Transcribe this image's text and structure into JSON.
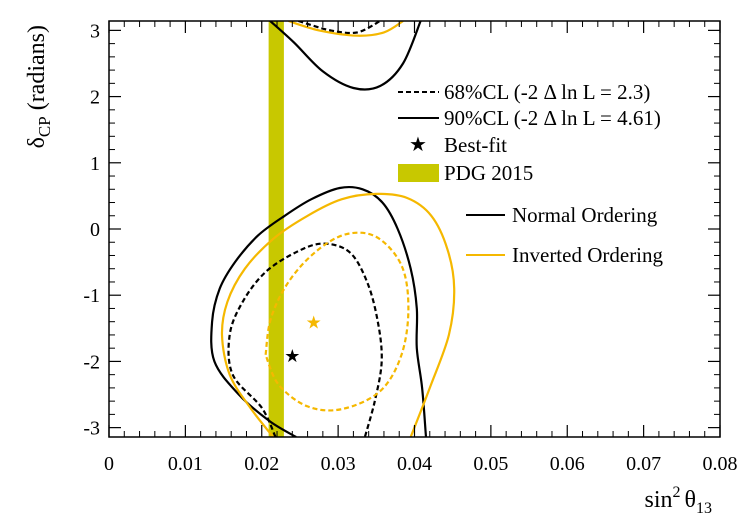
{
  "chart_data": {
    "type": "line",
    "xlabel": "sin",
    "xlabel_sup": "2",
    "xlabel_symbol": "θ",
    "xlabel_sub": "13",
    "ylabel_symbol": "δ",
    "ylabel_sub": "CP",
    "ylabel_unit": "(radians)",
    "xlim": [
      0,
      0.08
    ],
    "ylim": [
      -3.1416,
      3.1416
    ],
    "x_ticks": [
      0,
      0.01,
      0.02,
      0.03,
      0.04,
      0.05,
      0.06,
      0.07,
      0.08
    ],
    "x_tick_labels": [
      "0",
      "0.01",
      "0.02",
      "0.03",
      "0.04",
      "0.05",
      "0.06",
      "0.07",
      "0.08"
    ],
    "y_ticks": [
      -3,
      -2,
      -1,
      0,
      1,
      2,
      3
    ],
    "y_tick_labels": [
      "-3",
      "-2",
      "-1",
      "0",
      "1",
      "2",
      "3"
    ],
    "grid": false,
    "legend": {
      "placement": "top-right",
      "entries": [
        {
          "label": "68%CL (-2 Δ ln L = 2.3)",
          "style": "dashed-line"
        },
        {
          "label": "90%CL (-2 Δ ln L = 4.61)",
          "style": "solid-line"
        },
        {
          "label": "Best-fit",
          "style": "star"
        },
        {
          "label": "PDG 2015",
          "style": "band"
        },
        {
          "label": "Normal Ordering",
          "style": "color-line",
          "color": "#000000"
        },
        {
          "label": "Inverted Ordering",
          "style": "color-line",
          "color": "#f5b800"
        }
      ]
    },
    "band": {
      "name": "PDG 2015",
      "xmin": 0.0209,
      "xmax": 0.0229,
      "color": "#c8c800"
    },
    "series": [
      {
        "name": "Normal Ordering 90%CL",
        "color": "#000000",
        "dash": false,
        "points": [
          [
            0.0245,
            -3.1416
          ],
          [
            0.021,
            -2.9
          ],
          [
            0.017,
            -2.5
          ],
          [
            0.0138,
            -2.0
          ],
          [
            0.0135,
            -1.4
          ],
          [
            0.0145,
            -0.9
          ],
          [
            0.0165,
            -0.5
          ],
          [
            0.0195,
            -0.1
          ],
          [
            0.023,
            0.2
          ],
          [
            0.0265,
            0.45
          ],
          [
            0.0302,
            0.62
          ],
          [
            0.0332,
            0.6
          ],
          [
            0.0358,
            0.4
          ],
          [
            0.0378,
            0.0
          ],
          [
            0.0395,
            -0.6
          ],
          [
            0.0403,
            -1.2
          ],
          [
            0.0403,
            -1.8
          ],
          [
            0.041,
            -2.4
          ],
          [
            0.0415,
            -3.1416
          ]
        ]
      },
      {
        "name": "Normal Ordering 90%CL top",
        "color": "#000000",
        "dash": false,
        "points": [
          [
            0.0211,
            3.1416
          ],
          [
            0.0242,
            2.82
          ],
          [
            0.028,
            2.38
          ],
          [
            0.032,
            2.13
          ],
          [
            0.0355,
            2.16
          ],
          [
            0.0385,
            2.5
          ],
          [
            0.0408,
            3.1416
          ]
        ]
      },
      {
        "name": "Normal Ordering 68%CL",
        "color": "#000000",
        "dash": true,
        "points": [
          [
            0.0218,
            -3.1416
          ],
          [
            0.02,
            -2.7
          ],
          [
            0.0162,
            -2.2
          ],
          [
            0.0158,
            -1.6
          ],
          [
            0.0175,
            -1.1
          ],
          [
            0.0205,
            -0.65
          ],
          [
            0.0245,
            -0.35
          ],
          [
            0.028,
            -0.22
          ],
          [
            0.0315,
            -0.35
          ],
          [
            0.0338,
            -0.8
          ],
          [
            0.0352,
            -1.4
          ],
          [
            0.0357,
            -2.0
          ],
          [
            0.0348,
            -2.6
          ],
          [
            0.0335,
            -3.1416
          ]
        ]
      },
      {
        "name": "Normal Ordering 68%CL top",
        "color": "#000000",
        "dash": true,
        "points": [
          [
            0.0248,
            3.1416
          ],
          [
            0.029,
            3.0
          ],
          [
            0.0325,
            2.97
          ],
          [
            0.0355,
            3.1416
          ]
        ]
      },
      {
        "name": "Inverted Ordering 90%CL",
        "color": "#f5b800",
        "dash": false,
        "points": [
          [
            0.0215,
            -3.1416
          ],
          [
            0.0185,
            -2.7
          ],
          [
            0.0158,
            -2.2
          ],
          [
            0.0148,
            -1.6
          ],
          [
            0.0155,
            -1.1
          ],
          [
            0.0178,
            -0.6
          ],
          [
            0.0215,
            -0.15
          ],
          [
            0.026,
            0.2
          ],
          [
            0.0305,
            0.45
          ],
          [
            0.035,
            0.53
          ],
          [
            0.039,
            0.47
          ],
          [
            0.0422,
            0.2
          ],
          [
            0.0443,
            -0.3
          ],
          [
            0.0452,
            -0.9
          ],
          [
            0.0445,
            -1.6
          ],
          [
            0.042,
            -2.4
          ],
          [
            0.0395,
            -3.1416
          ]
        ]
      },
      {
        "name": "Inverted Ordering 90%CL top",
        "color": "#f5b800",
        "dash": false,
        "points": [
          [
            0.0235,
            3.1416
          ],
          [
            0.0275,
            3.0
          ],
          [
            0.0325,
            2.92
          ],
          [
            0.036,
            2.97
          ],
          [
            0.0385,
            3.1416
          ]
        ]
      },
      {
        "name": "Inverted Ordering 68%CL",
        "color": "#f5b800",
        "dash": true,
        "points": [
          [
            0.0205,
            -1.9
          ],
          [
            0.0212,
            -1.35
          ],
          [
            0.0235,
            -0.8
          ],
          [
            0.027,
            -0.35
          ],
          [
            0.031,
            -0.08
          ],
          [
            0.035,
            -0.12
          ],
          [
            0.0383,
            -0.55
          ],
          [
            0.0392,
            -1.2
          ],
          [
            0.0383,
            -1.9
          ],
          [
            0.0355,
            -2.45
          ],
          [
            0.0305,
            -2.72
          ],
          [
            0.026,
            -2.68
          ],
          [
            0.0222,
            -2.35
          ],
          [
            0.0205,
            -1.9
          ]
        ]
      }
    ],
    "best_fit": [
      {
        "name": "Normal Ordering best-fit",
        "x": 0.024,
        "y": -1.9,
        "color": "#000000"
      },
      {
        "name": "Inverted Ordering best-fit",
        "x": 0.0268,
        "y": -1.4,
        "color": "#f5b800"
      }
    ]
  }
}
